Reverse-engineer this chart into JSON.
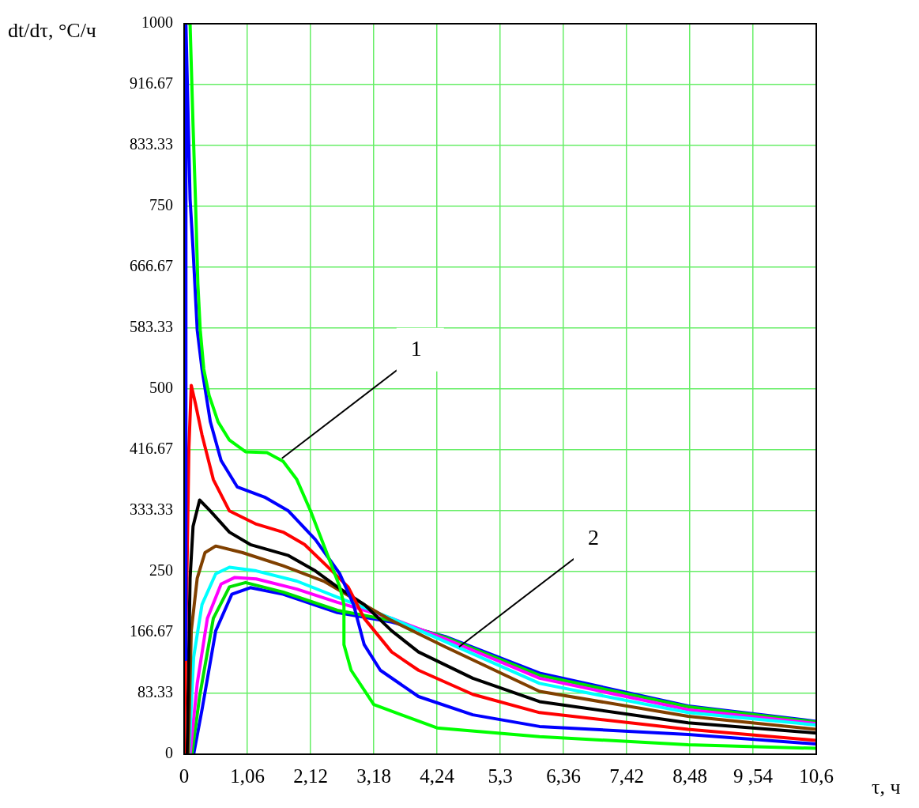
{
  "chart_data": {
    "type": "line",
    "xlabel": "τ, ч",
    "ylabel": "dt/dτ, °C/ч",
    "xlim": [
      0,
      10.6
    ],
    "ylim": [
      0,
      1000
    ],
    "xticks": [
      0,
      {
        "value": 1.06,
        "label": "1,06"
      },
      {
        "value": 2.12,
        "label": "2,12"
      },
      {
        "value": 3.18,
        "label": "3,18"
      },
      {
        "value": 4.24,
        "label": "4,24"
      },
      {
        "value": 5.3,
        "label": "5,3"
      },
      {
        "value": 6.36,
        "label": "6,36"
      },
      {
        "value": 7.42,
        "label": "7,42"
      },
      {
        "value": 8.48,
        "label": "8,48"
      },
      {
        "value": 9.54,
        "label": "9 ,54"
      },
      {
        "value": 10.6,
        "label": "10,6"
      }
    ],
    "yticks": [
      0,
      83.33,
      166.67,
      250,
      333.33,
      416.67,
      500,
      583.33,
      666.67,
      750,
      833.33,
      916.67,
      1000
    ],
    "grid": true,
    "legend": false,
    "marker": "none",
    "line_style": "solid",
    "annotations": [
      {
        "text": "1",
        "x": 1.64,
        "y": 405
      },
      {
        "text": "2",
        "x": 4.61,
        "y": 147
      }
    ],
    "series": [
      {
        "color": "#00ff00",
        "x": [
          0.08,
          0.1,
          0.15,
          0.19,
          0.23,
          0.27,
          0.33,
          0.42,
          0.57,
          0.76,
          1.03,
          1.39,
          1.66,
          1.89,
          2.12,
          2.39,
          2.61,
          2.68,
          2.68,
          2.8,
          3.18,
          4.24,
          5.96,
          8.45,
          10.6
        ],
        "values": [
          1000,
          1000,
          860,
          760,
          645,
          581,
          527,
          491,
          455,
          430,
          414,
          413,
          401,
          376,
          333,
          276,
          229,
          205,
          150,
          115,
          68,
          36,
          24,
          13,
          8
        ]
      },
      {
        "color": "#0000ff",
        "x": [
          0,
          0.03,
          0.03,
          0.1,
          0.15,
          0.22,
          0.3,
          0.44,
          0.62,
          0.89,
          1.35,
          1.75,
          2.2,
          2.61,
          2.84,
          3.02,
          3.29,
          3.93,
          4.84,
          5.96,
          8.45,
          10.6
        ],
        "values": [
          130,
          130,
          1000,
          760,
          691,
          581,
          527,
          455,
          402,
          366,
          352,
          333,
          294,
          247,
          205,
          150,
          115,
          79,
          54,
          38,
          27,
          14
        ]
      },
      {
        "color": "#ff0000",
        "x": [
          0,
          0.08,
          0.12,
          0.19,
          0.3,
          0.49,
          0.76,
          1.21,
          1.66,
          2.02,
          2.39,
          2.75,
          3.02,
          3.48,
          3.93,
          4.84,
          5.96,
          8.45,
          10.6
        ],
        "values": [
          0,
          419,
          505,
          480,
          437,
          376,
          333,
          315,
          304,
          287,
          258,
          229,
          186,
          140,
          115,
          82,
          57,
          34,
          19
        ]
      },
      {
        "color": "#000000",
        "x": [
          0.05,
          0.1,
          0.15,
          0.26,
          0.44,
          0.76,
          1.11,
          1.75,
          2.2,
          2.57,
          3.02,
          3.48,
          3.93,
          4.84,
          5.96,
          8.45,
          10.6
        ],
        "values": [
          0,
          241,
          312,
          348,
          333,
          304,
          287,
          272,
          251,
          229,
          205,
          169,
          140,
          104,
          72,
          43,
          29
        ]
      },
      {
        "color": "#804000",
        "x": [
          0.07,
          0.12,
          0.22,
          0.35,
          0.53,
          0.98,
          1.66,
          2.34,
          2.8,
          3.48,
          4.38,
          5.96,
          8.45,
          10.6
        ],
        "values": [
          0,
          169,
          241,
          276,
          285,
          276,
          258,
          237,
          215,
          183,
          147,
          86,
          52,
          34
        ]
      },
      {
        "color": "#00ffff",
        "x": [
          0.08,
          0.16,
          0.3,
          0.53,
          0.76,
          1.21,
          1.89,
          2.57,
          3.48,
          4.38,
          5.96,
          8.45,
          10.6
        ],
        "values": [
          0,
          133,
          205,
          247,
          256,
          251,
          237,
          215,
          186,
          154,
          97,
          57,
          40
        ]
      },
      {
        "color": "#ff00ff",
        "x": [
          0.1,
          0.22,
          0.39,
          0.62,
          0.85,
          1.21,
          1.89,
          2.57,
          3.48,
          4.38,
          5.96,
          8.45,
          10.6
        ],
        "values": [
          0,
          97,
          186,
          233,
          242,
          240,
          226,
          208,
          186,
          158,
          104,
          61,
          42
        ]
      },
      {
        "color": "#00e000",
        "x": [
          0.13,
          0.26,
          0.49,
          0.76,
          1.03,
          1.66,
          2.57,
          3.48,
          4.38,
          5.96,
          8.45,
          10.6
        ],
        "values": [
          0,
          79,
          186,
          229,
          235,
          222,
          197,
          183,
          160,
          108,
          65,
          44
        ]
      },
      {
        "color": "#0000ff",
        "x": [
          0.16,
          0.3,
          0.53,
          0.8,
          1.11,
          1.66,
          2.57,
          3.48,
          4.38,
          5.96,
          8.45,
          10.6
        ],
        "values": [
          0,
          61,
          169,
          219,
          228,
          219,
          194,
          181,
          161,
          111,
          66,
          45
        ]
      }
    ]
  }
}
